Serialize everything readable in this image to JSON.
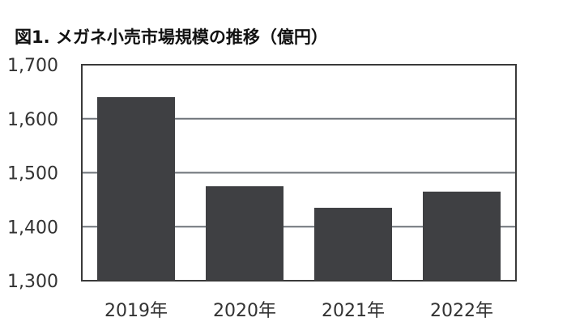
{
  "chart_data": {
    "type": "bar",
    "title": "図1. メガネ小売市場規模の推移（億円）",
    "categories": [
      "2019年",
      "2020年",
      "2021年",
      "2022年"
    ],
    "values": [
      1640,
      1475,
      1435,
      1465
    ],
    "ylim": [
      1300,
      1700
    ],
    "yticks": [
      1300,
      1400,
      1500,
      1600,
      1700
    ],
    "ytick_labels": [
      "1,300",
      "1,400",
      "1,500",
      "1,600",
      "1,700"
    ],
    "grid": true,
    "bar_color": "#3f4043",
    "grid_color": "#6f747a",
    "frame_color": "#3a3a3a"
  }
}
